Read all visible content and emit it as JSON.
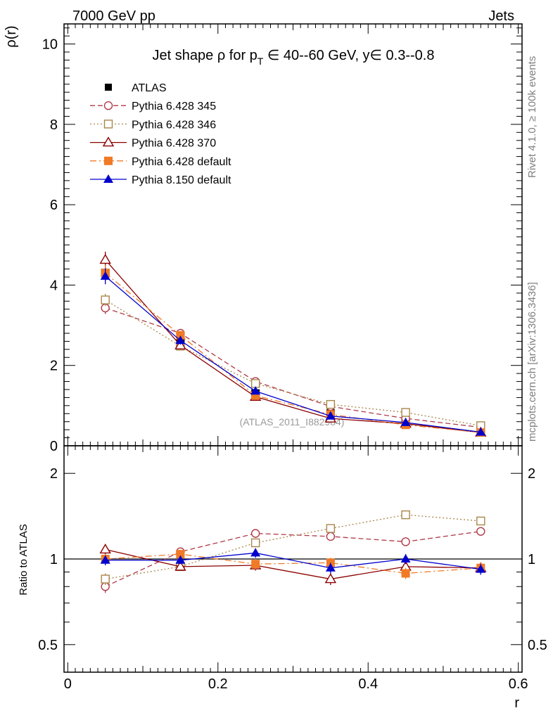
{
  "header": {
    "left": "7000 GeV pp",
    "right": "Jets"
  },
  "side": {
    "top": "Rivet 4.1.0, ≥ 100k events",
    "bottom": "mcplots.cern.ch [arXiv:1306.3436]"
  },
  "watermark": "(ATLAS_2011_I882984)",
  "chart_data": [
    {
      "type": "line",
      "title_parts": {
        "a": "Jet shape ",
        "b": "ρ",
        "c": " for p",
        "d": "T",
        "e": " ∈ 40--60 GeV, y∈ 0.3--0.8"
      },
      "ylabel": "ρ(r)",
      "xlabel": "r",
      "xlim": [
        -0.005,
        0.605
      ],
      "ylim": [
        0,
        10.5
      ],
      "x_ticks": [
        "0",
        "0.2",
        "0.4",
        "0.6"
      ],
      "x_tick_values": [
        0,
        0.2,
        0.4,
        0.6
      ],
      "y_ticks": [
        "0",
        "2",
        "4",
        "6",
        "8",
        "10"
      ],
      "y_tick_values": [
        0,
        2,
        4,
        6,
        8,
        10
      ],
      "x": [
        0.05,
        0.15,
        0.25,
        0.35,
        0.45,
        0.55
      ],
      "series": [
        {
          "name": "ATLAS",
          "color": "#000000",
          "marker": "square-filled",
          "dash": "none",
          "values": [
            4.3,
            2.65,
            1.3,
            0.8,
            0.58,
            0.36
          ],
          "errors": [
            0.2,
            0.12,
            0.07,
            0.05,
            0.04,
            0.03
          ]
        },
        {
          "name": "Pythia 6.428 345",
          "color": "#b03a48",
          "marker": "circle-open",
          "dash": "7,4",
          "values": [
            3.43,
            2.8,
            1.6,
            0.98,
            0.68,
            0.46
          ],
          "errors": [
            0.15,
            0.1,
            0.07,
            0.05,
            0.04,
            0.03
          ]
        },
        {
          "name": "Pythia 6.428 346",
          "color": "#a8864a",
          "marker": "square-open",
          "dash": "2,3",
          "values": [
            3.63,
            2.48,
            1.55,
            1.03,
            0.83,
            0.5
          ],
          "errors": [
            0.15,
            0.1,
            0.07,
            0.05,
            0.04,
            0.03
          ]
        },
        {
          "name": "Pythia 6.428 370",
          "color": "#8b0000",
          "marker": "triangle-open",
          "dash": "none",
          "values": [
            4.63,
            2.5,
            1.22,
            0.68,
            0.55,
            0.33
          ],
          "errors": [
            0.2,
            0.1,
            0.06,
            0.04,
            0.03,
            0.03
          ]
        },
        {
          "name": "Pythia 6.428 default",
          "color": "#f07a26",
          "marker": "square-filled",
          "dash": "9,4,2,4",
          "values": [
            4.3,
            2.75,
            1.25,
            0.78,
            0.52,
            0.33
          ],
          "errors": [
            0.2,
            0.1,
            0.06,
            0.04,
            0.03,
            0.03
          ]
        },
        {
          "name": "Pythia 8.150 default",
          "color": "#0000cc",
          "marker": "triangle-filled",
          "dash": "none",
          "values": [
            4.22,
            2.62,
            1.36,
            0.74,
            0.58,
            0.34
          ],
          "errors": [
            0.2,
            0.1,
            0.06,
            0.04,
            0.03,
            0.03
          ]
        }
      ]
    },
    {
      "type": "line",
      "title": "",
      "ylabel": "Ratio to ATLAS",
      "xlabel": "r",
      "scale": "log",
      "xlim": [
        -0.005,
        0.605
      ],
      "ylim": [
        0.4,
        2.5
      ],
      "reference_line": 1,
      "y_ticks": [
        "0.5",
        "1",
        "2"
      ],
      "y_tick_values": [
        0.5,
        1,
        2
      ],
      "x": [
        0.05,
        0.15,
        0.25,
        0.35,
        0.45,
        0.55
      ],
      "series": [
        {
          "name": "ATLAS",
          "color": "#000000",
          "marker": "none",
          "dash": "none",
          "values": [
            1,
            1,
            1,
            1,
            1,
            1
          ],
          "errors": [
            0,
            0,
            0,
            0,
            0,
            0
          ]
        },
        {
          "name": "Pythia 6.428 345",
          "color": "#b03a48",
          "marker": "circle-open",
          "dash": "7,4",
          "values": [
            0.8,
            1.06,
            1.23,
            1.2,
            1.15,
            1.25
          ],
          "errors": [
            0.04,
            0.03,
            0.04,
            0.04,
            0.04,
            0.04
          ]
        },
        {
          "name": "Pythia 6.428 346",
          "color": "#a8864a",
          "marker": "square-open",
          "dash": "2,3",
          "values": [
            0.85,
            0.94,
            1.14,
            1.28,
            1.43,
            1.36
          ],
          "errors": [
            0.04,
            0.03,
            0.04,
            0.04,
            0.04,
            0.04
          ]
        },
        {
          "name": "Pythia 6.428 370",
          "color": "#8b0000",
          "marker": "triangle-open",
          "dash": "none",
          "values": [
            1.08,
            0.94,
            0.95,
            0.85,
            0.94,
            0.93
          ],
          "errors": [
            0.04,
            0.03,
            0.04,
            0.04,
            0.04,
            0.04
          ]
        },
        {
          "name": "Pythia 6.428 default",
          "color": "#f07a26",
          "marker": "square-filled",
          "dash": "9,4,2,4",
          "values": [
            1.0,
            1.04,
            0.96,
            0.97,
            0.89,
            0.93
          ],
          "errors": [
            0.04,
            0.03,
            0.04,
            0.04,
            0.04,
            0.04
          ]
        },
        {
          "name": "Pythia 8.150 default",
          "color": "#0000cc",
          "marker": "triangle-filled",
          "dash": "none",
          "values": [
            0.99,
            0.99,
            1.05,
            0.93,
            1.0,
            0.92
          ],
          "errors": [
            0.04,
            0.03,
            0.04,
            0.04,
            0.04,
            0.04
          ]
        }
      ]
    }
  ]
}
